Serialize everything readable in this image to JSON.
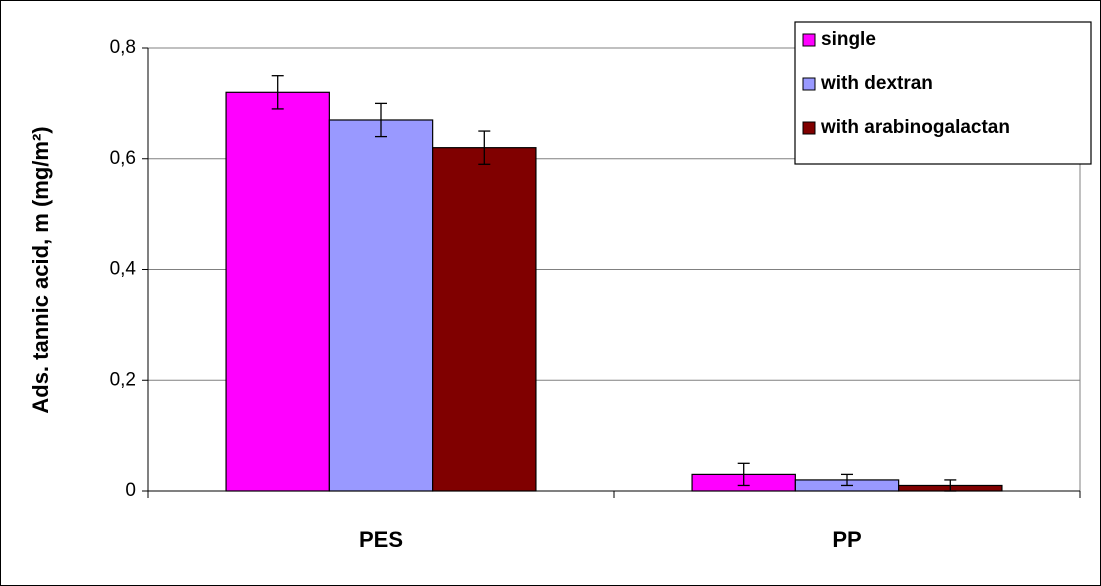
{
  "chart_data": {
    "type": "bar",
    "ylabel": "Ads. tannic acid, m (mg/m²)",
    "categories": [
      "PES",
      "PP"
    ],
    "series": [
      {
        "name": "single",
        "color": "#ff00ff",
        "values": [
          0.72,
          0.03
        ],
        "errors": [
          0.03,
          0.02
        ]
      },
      {
        "name": "with dextran",
        "color": "#9999ff",
        "values": [
          0.67,
          0.02
        ],
        "errors": [
          0.03,
          0.01
        ]
      },
      {
        "name": "with arabinogalactan",
        "color": "#800000",
        "values": [
          0.62,
          0.01
        ],
        "errors": [
          0.03,
          0.01
        ]
      }
    ],
    "ylim": [
      0,
      0.8
    ],
    "yticks": [
      0,
      {
        "value": 0.2,
        "label": "0,2"
      },
      {
        "value": 0.4,
        "label": "0,4"
      },
      {
        "value": 0.6,
        "label": "0,6"
      },
      {
        "value": 0.8,
        "label": "0,8"
      }
    ],
    "grid": true,
    "legend_loc": "upper right"
  }
}
